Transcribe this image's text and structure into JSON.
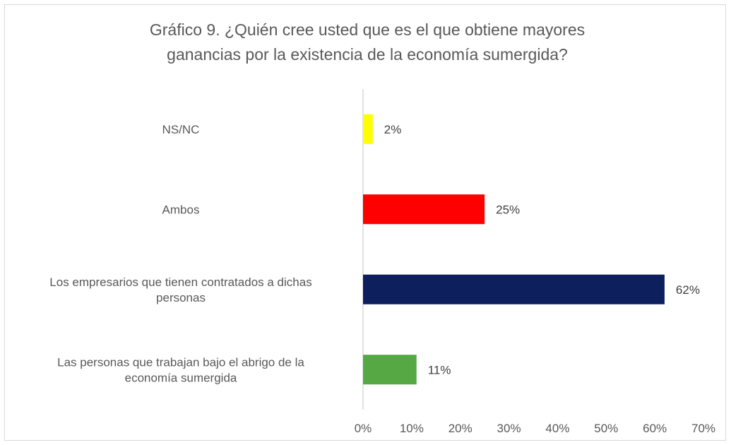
{
  "chart_data": {
    "type": "bar",
    "orientation": "horizontal",
    "title": "Gráfico 9. ¿Quién cree usted que es el que obtiene mayores ganancias por la existencia de la economía sumergida?",
    "title_lines": [
      "Gráfico 9. ¿Quién cree usted que es el que obtiene mayores",
      "ganancias por la existencia de la economía sumergida?"
    ],
    "categories": [
      [
        "NS/NC"
      ],
      [
        "Ambos"
      ],
      [
        "Los empresarios que tienen contratados a dichas",
        "personas"
      ],
      [
        "Las personas que trabajan bajo el abrigo de la",
        "economía sumergida"
      ]
    ],
    "values": [
      2,
      25,
      62,
      11
    ],
    "data_labels": [
      "2%",
      "25%",
      "62%",
      "11%"
    ],
    "colors": [
      "#ffff00",
      "#ff0000",
      "#0d1f5c",
      "#55a844"
    ],
    "xlim": [
      0,
      70
    ],
    "x_ticks": [
      0,
      10,
      20,
      30,
      40,
      50,
      60,
      70
    ],
    "x_tick_labels": [
      "0%",
      "10%",
      "20%",
      "30%",
      "40%",
      "50%",
      "60%",
      "70%"
    ],
    "xlabel": "",
    "ylabel": "",
    "grid": false,
    "legend": "none"
  }
}
